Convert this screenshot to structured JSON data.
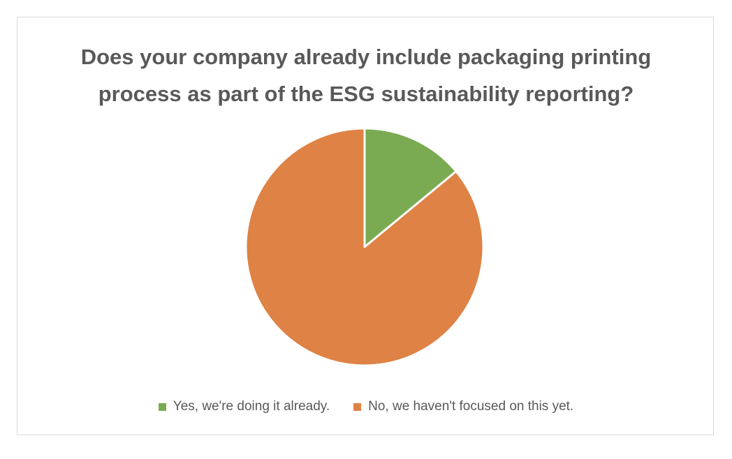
{
  "chart_data": {
    "type": "pie",
    "title_lines": [
      "Does your company already include packaging printing",
      "process as part of the ESG sustainability reporting?"
    ],
    "categories": [
      "Yes, we're doing it already.",
      "No, we haven't focused on this yet."
    ],
    "values": [
      14,
      86
    ],
    "colors": [
      "#7aab52",
      "#de8245"
    ],
    "legend_position": "bottom"
  }
}
